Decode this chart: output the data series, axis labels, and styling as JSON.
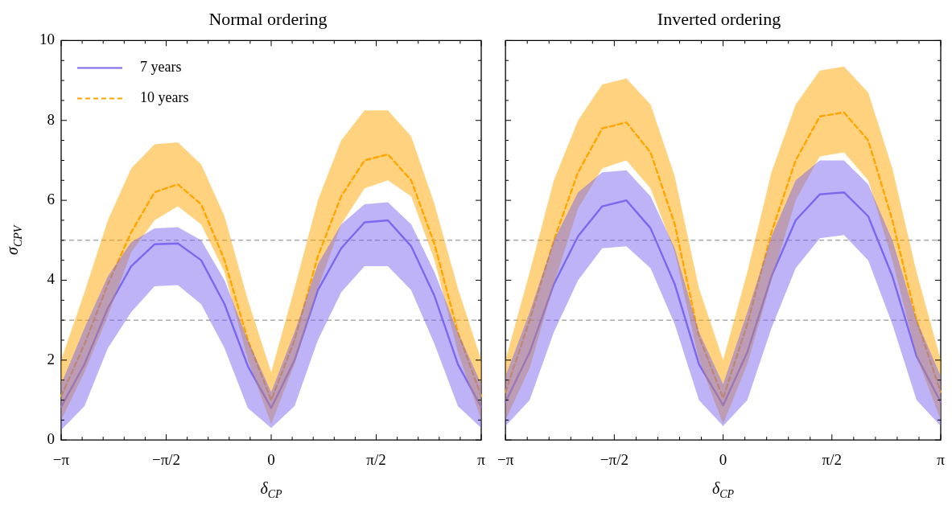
{
  "chart_data": [
    {
      "type": "line",
      "title": "Normal ordering",
      "xlabel": "δ$_{CP}$",
      "ylabel": "σ$_{CPV}$",
      "legend": "top left",
      "tick_labels": "xy",
      "x": [
        -3.1416,
        -2.7925,
        -2.4435,
        -2.0944,
        -1.7453,
        -1.3963,
        -1.0472,
        -0.6981,
        -0.3491,
        0,
        0.3491,
        0.6981,
        1.0472,
        1.3963,
        1.7453,
        2.0944,
        2.4435,
        2.7925,
        3.1416
      ],
      "series": [
        {
          "name": "7 years",
          "color": "#7b68ee",
          "line_style": "solid",
          "values": [
            0.83,
            1.9,
            3.3,
            4.35,
            4.9,
            4.92,
            4.5,
            3.4,
            1.85,
            0.8,
            2.0,
            3.75,
            4.8,
            5.45,
            5.5,
            4.85,
            3.6,
            1.9,
            0.83
          ],
          "lower": [
            0.25,
            0.85,
            2.3,
            3.2,
            3.85,
            3.88,
            3.4,
            2.3,
            0.8,
            0.3,
            0.85,
            2.5,
            3.7,
            4.35,
            4.35,
            3.75,
            2.4,
            0.85,
            0.3
          ],
          "upper": [
            1.4,
            2.8,
            4.1,
            4.95,
            5.3,
            5.33,
            5.0,
            4.0,
            2.5,
            1.2,
            2.7,
            4.4,
            5.4,
            5.9,
            5.95,
            5.4,
            4.2,
            2.7,
            1.4
          ]
        },
        {
          "name": "10 years",
          "color": "#ffa500",
          "line_style": "dashed",
          "values": [
            1.1,
            2.4,
            3.9,
            5.2,
            6.2,
            6.4,
            5.9,
            4.5,
            2.5,
            1.0,
            2.5,
            4.6,
            6.1,
            7.0,
            7.15,
            6.5,
            4.9,
            2.7,
            1.1
          ],
          "lower": [
            0.5,
            1.7,
            3.1,
            4.7,
            5.5,
            5.85,
            5.4,
            4.2,
            2.0,
            0.4,
            1.9,
            3.8,
            5.4,
            6.3,
            6.5,
            6.1,
            4.5,
            2.2,
            0.5
          ],
          "upper": [
            2.0,
            3.7,
            5.5,
            6.8,
            7.4,
            7.45,
            6.9,
            5.6,
            3.5,
            1.7,
            3.8,
            6.0,
            7.5,
            8.25,
            8.25,
            7.6,
            5.9,
            3.8,
            2.0
          ]
        }
      ],
      "xlim": [
        -3.1416,
        3.1416
      ],
      "xticks": [
        {
          "value": -3.1416,
          "label": "−π"
        },
        {
          "value": -2.8274,
          "label": null
        },
        {
          "value": -2.5133,
          "label": null
        },
        {
          "value": -2.1991,
          "label": null
        },
        {
          "value": -1.885,
          "label": null
        },
        {
          "value": -1.5708,
          "label": "−π/2"
        },
        {
          "value": -1.2566,
          "label": null
        },
        {
          "value": -0.9425,
          "label": null
        },
        {
          "value": -0.6283,
          "label": null
        },
        {
          "value": -0.3142,
          "label": null
        },
        {
          "value": 0,
          "label": "0"
        },
        {
          "value": 0.3142,
          "label": null
        },
        {
          "value": 0.6283,
          "label": null
        },
        {
          "value": 0.9425,
          "label": null
        },
        {
          "value": 1.2566,
          "label": null
        },
        {
          "value": 1.5708,
          "label": "π/2"
        },
        {
          "value": 1.885,
          "label": null
        },
        {
          "value": 2.1991,
          "label": null
        },
        {
          "value": 2.5133,
          "label": null
        },
        {
          "value": 2.8274,
          "label": null
        },
        {
          "value": 3.1416,
          "label": "π"
        }
      ],
      "ylim": [
        0,
        10
      ],
      "yticks": [
        0,
        {
          "value": 0.5,
          "label": null
        },
        {
          "value": 1,
          "label": null
        },
        {
          "value": 1.5,
          "label": null
        },
        2,
        {
          "value": 2.5,
          "label": null
        },
        {
          "value": 3,
          "label": null
        },
        {
          "value": 3.5,
          "label": null
        },
        4,
        {
          "value": 4.5,
          "label": null
        },
        {
          "value": 5,
          "label": null
        },
        {
          "value": 5.5,
          "label": null
        },
        6,
        {
          "value": 6.5,
          "label": null
        },
        {
          "value": 7,
          "label": null
        },
        {
          "value": 7.5,
          "label": null
        },
        8,
        {
          "value": 8.5,
          "label": null
        },
        {
          "value": 9,
          "label": null
        },
        {
          "value": 9.5,
          "label": null
        },
        10
      ],
      "ref_lines": [
        {
          "axis": "y",
          "value": 5,
          "color": "#808080",
          "line_style": "dashed"
        },
        {
          "axis": "y",
          "value": 3,
          "color": "#808080",
          "line_style": "dashed"
        }
      ]
    },
    {
      "type": "line",
      "title": "Inverted ordering",
      "xlabel": "δ$_{CP}$",
      "tick_labels": "x",
      "x": [
        -3.1416,
        -2.7925,
        -2.4435,
        -2.0944,
        -1.7453,
        -1.3963,
        -1.0472,
        -0.6981,
        -0.3491,
        0,
        0.3491,
        0.6981,
        1.0472,
        1.3963,
        1.7453,
        2.0944,
        2.4435,
        2.7925,
        3.1416
      ],
      "series": [
        {
          "color": "#7b68ee",
          "line_style": "solid",
          "values": [
            0.95,
            2.2,
            3.9,
            5.1,
            5.85,
            6.0,
            5.3,
            3.9,
            1.9,
            0.87,
            2.2,
            4.1,
            5.5,
            6.15,
            6.2,
            5.6,
            4.1,
            2.1,
            0.95
          ],
          "lower": [
            0.35,
            1.0,
            2.7,
            4.0,
            4.8,
            4.85,
            4.3,
            2.9,
            1.0,
            0.35,
            1.0,
            2.8,
            4.3,
            5.05,
            5.13,
            4.5,
            2.9,
            1.0,
            0.35
          ],
          "upper": [
            1.6,
            3.2,
            5.0,
            6.2,
            6.7,
            6.75,
            6.1,
            4.8,
            2.7,
            1.4,
            3.2,
            5.1,
            6.5,
            7.0,
            7.0,
            6.4,
            5.0,
            3.0,
            1.6
          ]
        },
        {
          "color": "#ffa500",
          "line_style": "dashed",
          "values": [
            1.2,
            3.0,
            5.0,
            6.7,
            7.8,
            7.95,
            7.2,
            5.4,
            2.6,
            1.05,
            2.9,
            5.2,
            7.0,
            8.1,
            8.2,
            7.5,
            5.5,
            3.0,
            1.2
          ],
          "lower": [
            0.5,
            1.8,
            3.9,
            5.8,
            6.8,
            7.0,
            6.3,
            4.7,
            2.0,
            0.4,
            1.9,
            4.0,
            6.0,
            7.1,
            7.2,
            6.5,
            4.5,
            2.1,
            0.5
          ],
          "upper": [
            2.0,
            4.2,
            6.5,
            8.0,
            8.9,
            9.05,
            8.4,
            6.6,
            3.8,
            2.0,
            4.2,
            6.7,
            8.4,
            9.25,
            9.35,
            8.7,
            6.8,
            4.2,
            2.0
          ]
        }
      ],
      "xlim": [
        -3.1416,
        3.1416
      ],
      "xticks": [
        {
          "value": -3.1416,
          "label": "−π"
        },
        {
          "value": -2.8274,
          "label": null
        },
        {
          "value": -2.5133,
          "label": null
        },
        {
          "value": -2.1991,
          "label": null
        },
        {
          "value": -1.885,
          "label": null
        },
        {
          "value": -1.5708,
          "label": "−π/2"
        },
        {
          "value": -1.2566,
          "label": null
        },
        {
          "value": -0.9425,
          "label": null
        },
        {
          "value": -0.6283,
          "label": null
        },
        {
          "value": -0.3142,
          "label": null
        },
        {
          "value": 0,
          "label": "0"
        },
        {
          "value": 0.3142,
          "label": null
        },
        {
          "value": 0.6283,
          "label": null
        },
        {
          "value": 0.9425,
          "label": null
        },
        {
          "value": 1.2566,
          "label": null
        },
        {
          "value": 1.5708,
          "label": "π/2"
        },
        {
          "value": 1.885,
          "label": null
        },
        {
          "value": 2.1991,
          "label": null
        },
        {
          "value": 2.5133,
          "label": null
        },
        {
          "value": 2.8274,
          "label": null
        },
        {
          "value": 3.1416,
          "label": "π"
        }
      ],
      "ylim": [
        0,
        10
      ],
      "yticks": [
        0,
        {
          "value": 0.5,
          "label": null
        },
        {
          "value": 1,
          "label": null
        },
        {
          "value": 1.5,
          "label": null
        },
        2,
        {
          "value": 2.5,
          "label": null
        },
        {
          "value": 3,
          "label": null
        },
        {
          "value": 3.5,
          "label": null
        },
        4,
        {
          "value": 4.5,
          "label": null
        },
        {
          "value": 5,
          "label": null
        },
        {
          "value": 5.5,
          "label": null
        },
        6,
        {
          "value": 6.5,
          "label": null
        },
        {
          "value": 7,
          "label": null
        },
        {
          "value": 7.5,
          "label": null
        },
        8,
        {
          "value": 8.5,
          "label": null
        },
        {
          "value": 9,
          "label": null
        },
        {
          "value": 9.5,
          "label": null
        },
        10
      ],
      "ref_lines": [
        {
          "axis": "y",
          "value": 5,
          "color": "#808080",
          "line_style": "dashed"
        },
        {
          "axis": "y",
          "value": 3,
          "color": "#808080",
          "line_style": "dashed"
        }
      ]
    }
  ]
}
